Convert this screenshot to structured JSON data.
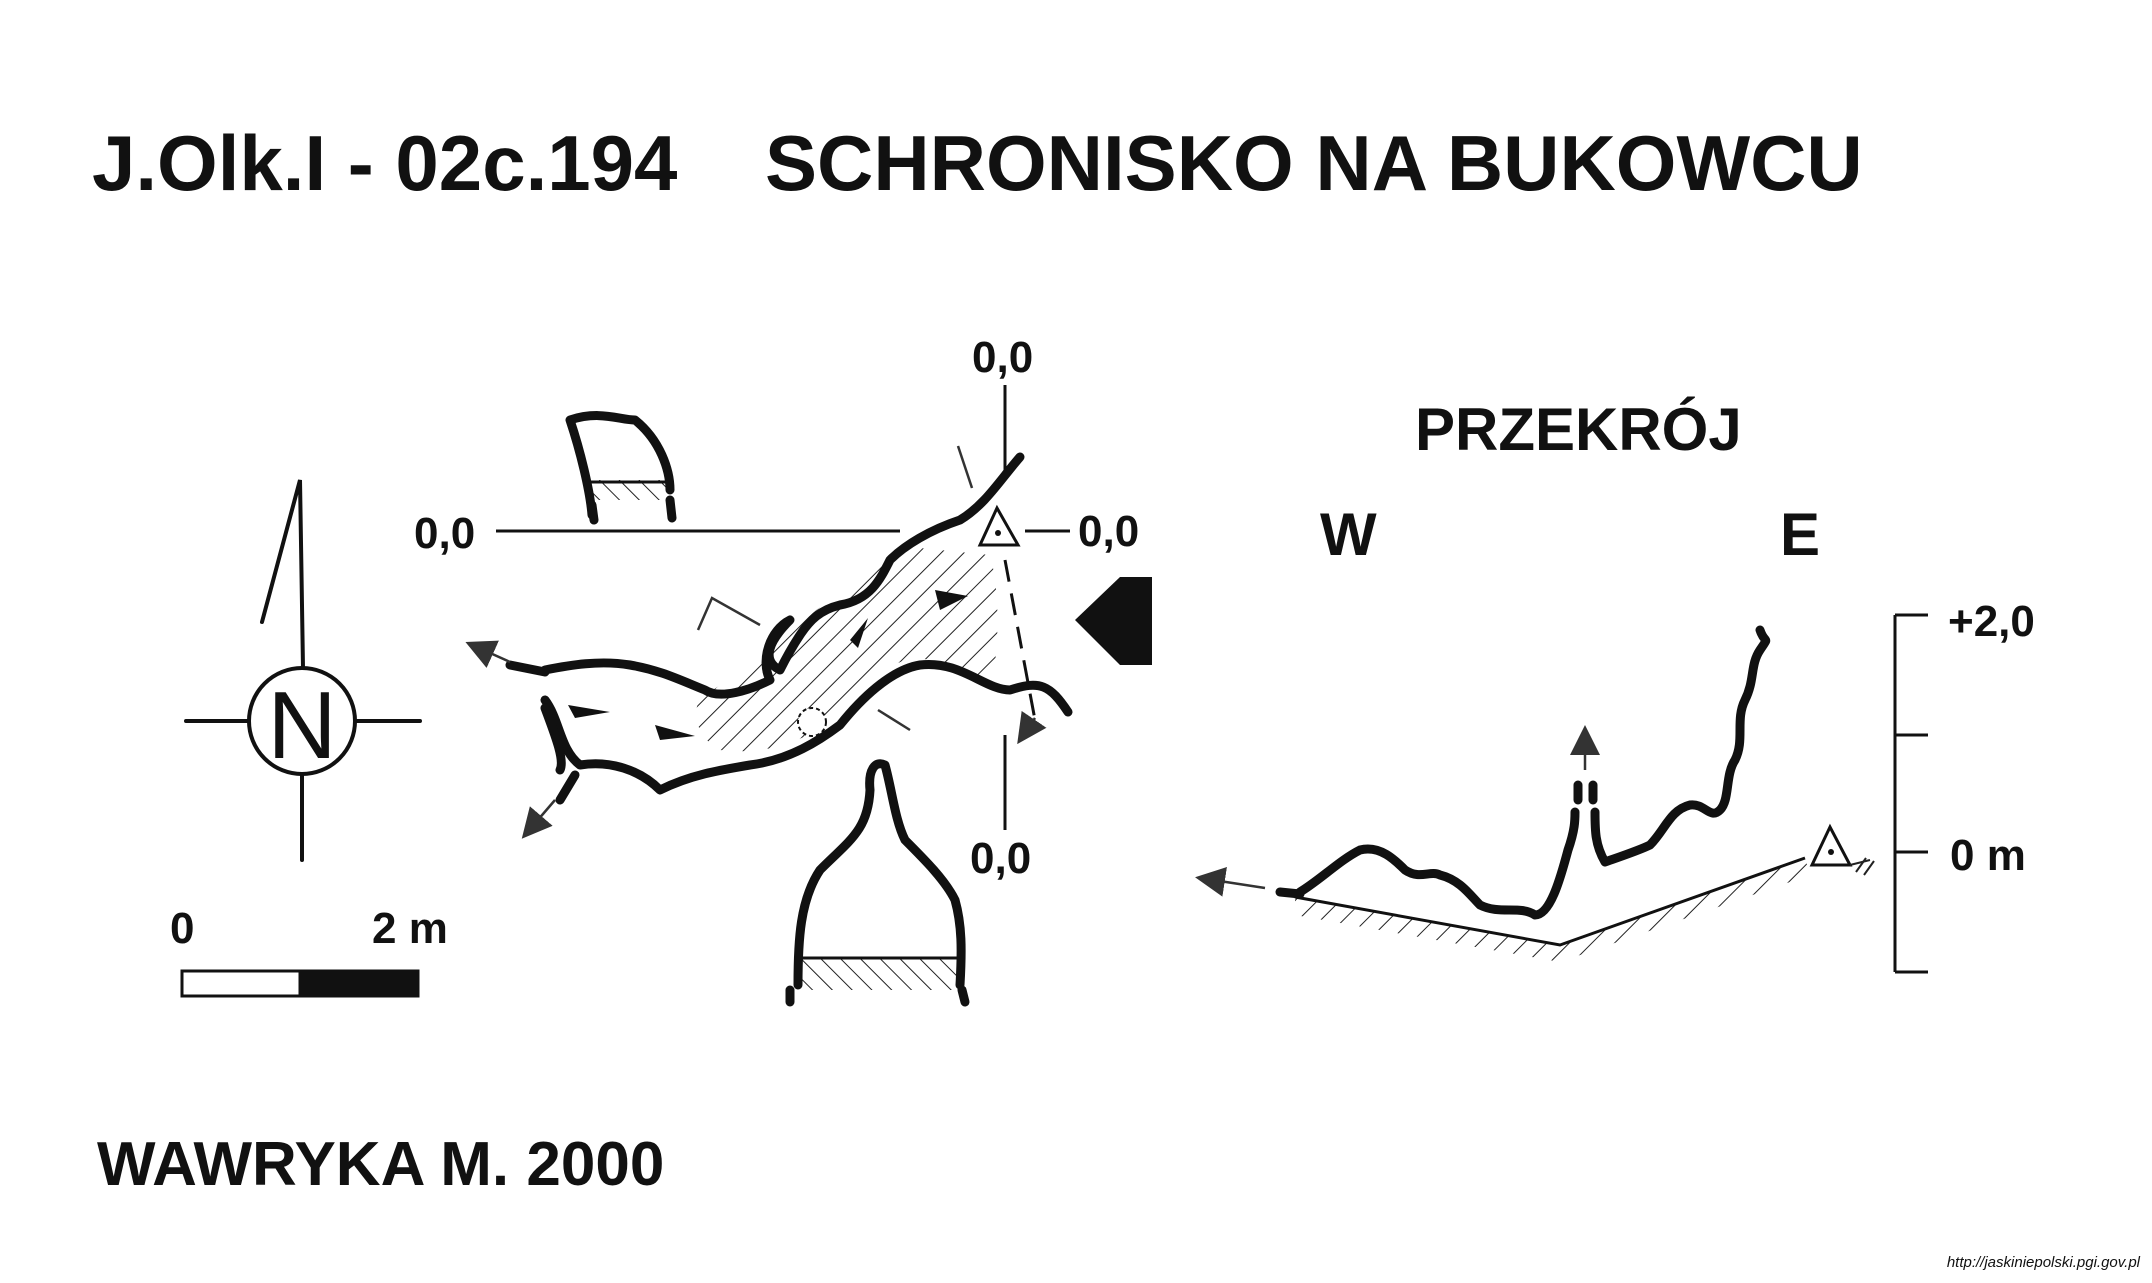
{
  "title": {
    "code": "J.Olk.I - 02c.194",
    "name": "SCHRONISKO NA BUKOWCU"
  },
  "plan": {
    "datum_labels": [
      "0,0",
      "0,0",
      "0,0",
      "0,0"
    ]
  },
  "compass": {
    "letter": "N"
  },
  "scale_bar": {
    "start_label": "0",
    "end_label": "2 m"
  },
  "section": {
    "heading": "PRZEKRÓJ",
    "west_label": "W",
    "east_label": "E",
    "scale_top_label": "+2,0",
    "scale_zero_label": "0 m"
  },
  "author": "WAWRYKA M. 2000",
  "source_url": "http://jaskiniepolski.pgi.gov.pl"
}
